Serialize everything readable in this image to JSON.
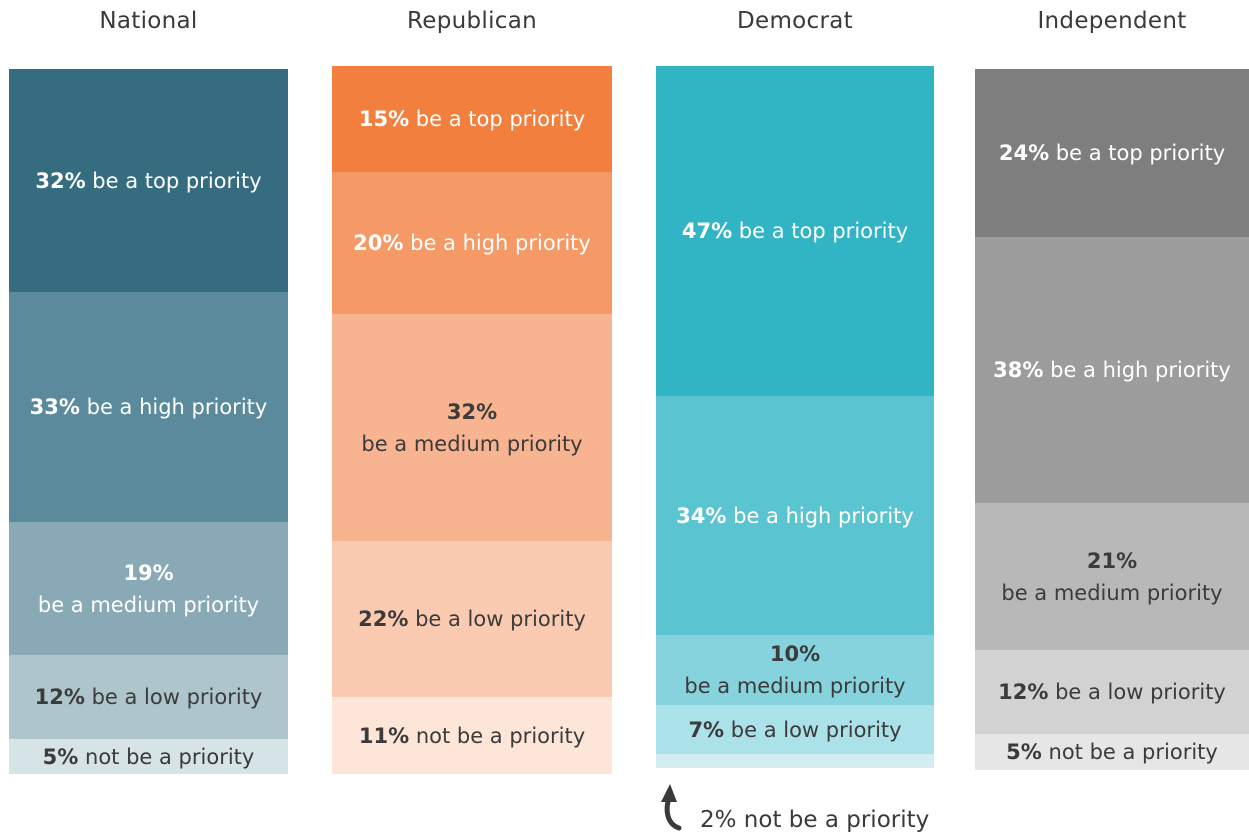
{
  "chart_data": {
    "type": "stacked-bar",
    "columns": [
      {
        "title": "National",
        "segments": [
          {
            "value": 32,
            "pct": "32%",
            "text": "be a top priority",
            "split": false,
            "color": "#366c80",
            "text_color": "#ffffff"
          },
          {
            "value": 33,
            "pct": "33%",
            "text": "be a high priority",
            "split": false,
            "color": "#5a8a9b",
            "text_color": "#ffffff"
          },
          {
            "value": 19,
            "pct": "19%",
            "text": "be a medium priority",
            "split": true,
            "color": "#88a9b5",
            "text_color": "#ffffff"
          },
          {
            "value": 12,
            "pct": "12%",
            "text": "be a low priority",
            "split": false,
            "color": "#aec5cc",
            "text_color": "#3b3b3b"
          },
          {
            "value": 5,
            "pct": "5%",
            "text": "not be a priority",
            "split": false,
            "color": "#d6e3e7",
            "text_color": "#3b3b3b"
          }
        ]
      },
      {
        "title": "Republican",
        "segments": [
          {
            "value": 15,
            "pct": "15%",
            "text": "be a top priority",
            "split": false,
            "color": "#f27f3e",
            "text_color": "#ffffff"
          },
          {
            "value": 20,
            "pct": "20%",
            "text": "be a high priority",
            "split": false,
            "color": "#f59a66",
            "text_color": "#ffffff"
          },
          {
            "value": 32,
            "pct": "32%",
            "text": "be a medium priority",
            "split": true,
            "color": "#f8b490",
            "text_color": "#3b3b3b"
          },
          {
            "value": 22,
            "pct": "22%",
            "text": "be a low priority",
            "split": false,
            "color": "#facbb1",
            "text_color": "#3b3b3b"
          },
          {
            "value": 11,
            "pct": "11%",
            "text": "not be a priority",
            "split": false,
            "color": "#fde5d8",
            "text_color": "#3b3b3b"
          }
        ]
      },
      {
        "title": "Democrat",
        "segments": [
          {
            "value": 47,
            "pct": "47%",
            "text": "be a top priority",
            "split": false,
            "color": "#31b4c3",
            "text_color": "#ffffff"
          },
          {
            "value": 34,
            "pct": "34%",
            "text": "be a high priority",
            "split": false,
            "color": "#5bc4d1",
            "text_color": "#ffffff"
          },
          {
            "value": 10,
            "pct": "10%",
            "text": "be a medium priority",
            "split": true,
            "color": "#86d3dd",
            "text_color": "#3b3b3b"
          },
          {
            "value": 7,
            "pct": "7%",
            "text": "be a low priority",
            "split": false,
            "color": "#abe1e8",
            "text_color": "#3b3b3b"
          },
          {
            "value": 2,
            "pct": "",
            "text": "",
            "split": false,
            "color": "#d3eef2",
            "text_color": "#3b3b3b"
          }
        ]
      },
      {
        "title": "Independent",
        "segments": [
          {
            "value": 24,
            "pct": "24%",
            "text": "be a top priority",
            "split": false,
            "color": "#7f7e7e",
            "text_color": "#ffffff"
          },
          {
            "value": 38,
            "pct": "38%",
            "text": "be a high priority",
            "split": false,
            "color": "#9d9c9c",
            "text_color": "#ffffff"
          },
          {
            "value": 21,
            "pct": "21%",
            "text": "be a medium priority",
            "split": true,
            "color": "#b9b8b8",
            "text_color": "#3b3b3b"
          },
          {
            "value": 12,
            "pct": "12%",
            "text": "be a low priority",
            "split": false,
            "color": "#d3d2d2",
            "text_color": "#3b3b3b"
          },
          {
            "value": 5,
            "pct": "5%",
            "text": "not be a priority",
            "split": false,
            "color": "#e6e6e6",
            "text_color": "#3b3b3b"
          }
        ]
      }
    ],
    "footnote": "2% not be a priority"
  }
}
